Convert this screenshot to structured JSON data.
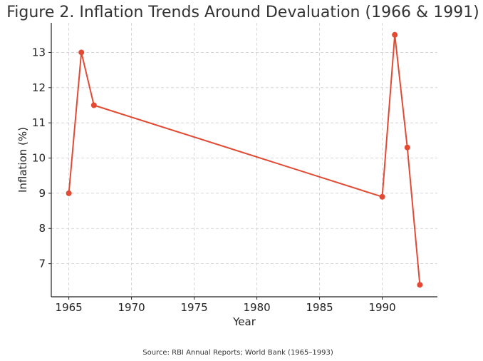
{
  "chart_data": {
    "type": "line",
    "title": "Figure 2. Inflation Trends Around Devaluation (1966 & 1991)",
    "xlabel": "Year",
    "ylabel": "Inflation (%)",
    "xlim": [
      1963.6,
      1994.4
    ],
    "ylim": [
      6.06,
      13.84
    ],
    "xticks": [
      1965,
      1970,
      1975,
      1980,
      1985,
      1990
    ],
    "yticks": [
      7,
      8,
      9,
      10,
      11,
      12,
      13
    ],
    "grid": true,
    "legend": "none",
    "series": [
      {
        "name": "Inflation",
        "color": "#e24a33",
        "x": [
          1965,
          1966,
          1967,
          1990,
          1991,
          1992,
          1993
        ],
        "values": [
          9.0,
          13.0,
          11.5,
          8.9,
          13.5,
          10.3,
          6.4
        ]
      }
    ],
    "source_note": "Source: RBI Annual Reports; World Bank (1965–1993)"
  }
}
